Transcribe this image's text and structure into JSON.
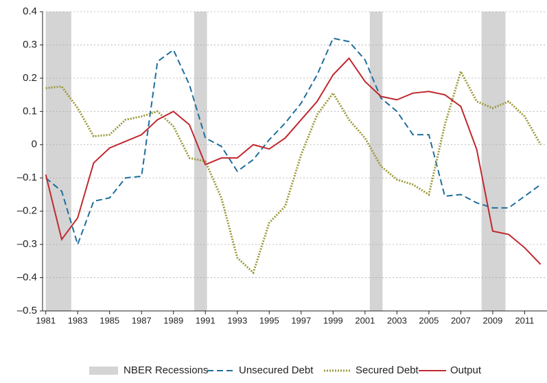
{
  "chart_data": {
    "type": "line",
    "x": [
      1981,
      1982,
      1983,
      1984,
      1985,
      1986,
      1987,
      1988,
      1989,
      1990,
      1991,
      1992,
      1993,
      1994,
      1995,
      1996,
      1997,
      1998,
      1999,
      2000,
      2001,
      2002,
      2003,
      2004,
      2005,
      2006,
      2007,
      2008,
      2009,
      2010,
      2011,
      2012
    ],
    "recessions": {
      "name": "NBER Recessions",
      "color": "#d4d4d4",
      "ranges": [
        [
          1981.0,
          1982.6
        ],
        [
          1990.3,
          1991.1
        ],
        [
          2001.3,
          2002.1
        ],
        [
          2008.3,
          2009.8
        ]
      ]
    },
    "series": [
      {
        "name": "Unsecured Debt",
        "color": "#1f6e9c",
        "style": "dashed",
        "values": [
          -0.1,
          -0.14,
          -0.3,
          -0.17,
          -0.16,
          -0.1,
          -0.095,
          0.25,
          0.285,
          0.18,
          0.02,
          -0.005,
          -0.08,
          -0.045,
          0.015,
          0.065,
          0.125,
          0.21,
          0.32,
          0.31,
          0.255,
          0.14,
          0.1,
          0.03,
          0.03,
          -0.155,
          -0.15,
          -0.175,
          -0.19,
          -0.19,
          -0.155,
          -0.12
        ]
      },
      {
        "name": "Secured Debt",
        "color": "#9b9a3a",
        "style": "dotted",
        "values": [
          0.17,
          0.175,
          0.11,
          0.025,
          0.03,
          0.075,
          0.085,
          0.1,
          0.055,
          -0.04,
          -0.05,
          -0.16,
          -0.34,
          -0.385,
          -0.235,
          -0.185,
          -0.03,
          0.09,
          0.155,
          0.075,
          0.02,
          -0.065,
          -0.105,
          -0.12,
          -0.15,
          0.06,
          0.22,
          0.13,
          0.11,
          0.13,
          0.085,
          0.0
        ]
      },
      {
        "name": "Output",
        "color": "#c0282f",
        "style": "solid",
        "values": [
          -0.09,
          -0.285,
          -0.22,
          -0.055,
          -0.01,
          0.01,
          0.03,
          0.075,
          0.1,
          0.06,
          -0.06,
          -0.04,
          -0.04,
          0.0,
          -0.013,
          0.02,
          0.075,
          0.13,
          0.21,
          0.26,
          0.19,
          0.145,
          0.135,
          0.155,
          0.16,
          0.15,
          0.115,
          -0.015,
          -0.26,
          -0.27,
          -0.31,
          -0.36
        ]
      }
    ],
    "xlim": [
      1980.8,
      2012.4
    ],
    "xticks": [
      1981,
      1983,
      1985,
      1987,
      1989,
      1991,
      1993,
      1995,
      1997,
      1999,
      2001,
      2003,
      2005,
      2007,
      2009,
      2011
    ],
    "ylim": [
      -0.5,
      0.4
    ],
    "yticks": [
      0.4,
      0.3,
      0.2,
      0.1,
      0,
      {
        "value": -0.1,
        "label": "–0.1"
      },
      {
        "value": -0.2,
        "label": "–0.2"
      },
      {
        "value": -0.3,
        "label": "–0.3"
      },
      {
        "value": -0.4,
        "label": "–0.4"
      },
      {
        "value": -0.5,
        "label": "–0.5"
      }
    ],
    "grid": true
  }
}
